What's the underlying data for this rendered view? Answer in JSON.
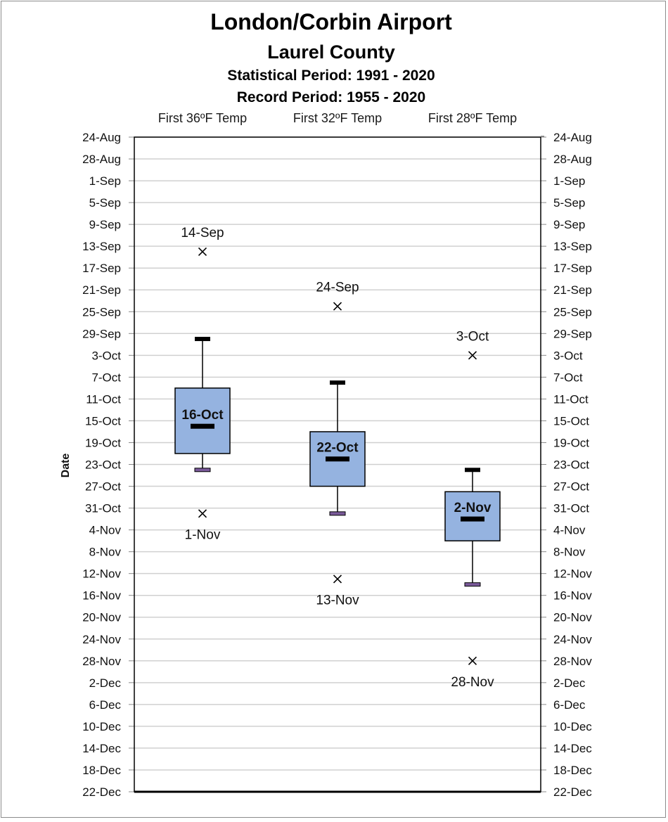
{
  "chart_data": {
    "type": "box",
    "title": "London/Corbin Airport",
    "subtitle": "Laurel County",
    "statistical_period": "Statistical Period: 1991 - 2020",
    "record_period": "Record Period: 1955 - 2020",
    "ylabel": "Date",
    "yticks": [
      "24-Aug",
      "28-Aug",
      "1-Sep",
      "5-Sep",
      "9-Sep",
      "13-Sep",
      "17-Sep",
      "21-Sep",
      "25-Sep",
      "29-Sep",
      "3-Oct",
      "7-Oct",
      "11-Oct",
      "15-Oct",
      "19-Oct",
      "23-Oct",
      "27-Oct",
      "31-Oct",
      "4-Nov",
      "8-Nov",
      "12-Nov",
      "16-Nov",
      "20-Nov",
      "24-Nov",
      "28-Nov",
      "2-Dec",
      "6-Dec",
      "10-Dec",
      "14-Dec",
      "18-Dec",
      "22-Dec"
    ],
    "ylim": [
      "24-Aug",
      "22-Dec"
    ],
    "reversed_y": true,
    "grid": true,
    "colors": {
      "box_fill": "#95b3e0",
      "box_stroke": "#000000",
      "grid": "#d0d0d0",
      "whisker_low": "#7a5a9a"
    },
    "series": [
      {
        "name": "First 36ºF Temp",
        "record_earliest": "14-Sep",
        "whisker_low": "30-Sep",
        "q1": "9-Oct",
        "median": "16-Oct",
        "q3": "21-Oct",
        "whisker_high": "24-Oct",
        "record_latest": "1-Nov"
      },
      {
        "name": "First 32ºF Temp",
        "record_earliest": "24-Sep",
        "whisker_low": "8-Oct",
        "q1": "17-Oct",
        "median": "22-Oct",
        "q3": "27-Oct",
        "whisker_high": "1-Nov",
        "record_latest": "13-Nov"
      },
      {
        "name": "First 28ºF Temp",
        "record_earliest": "3-Oct",
        "whisker_low": "24-Oct",
        "q1": "28-Oct",
        "median": "2-Nov",
        "q3": "6-Nov",
        "whisker_high": "14-Nov",
        "record_latest": "28-Nov"
      }
    ]
  }
}
